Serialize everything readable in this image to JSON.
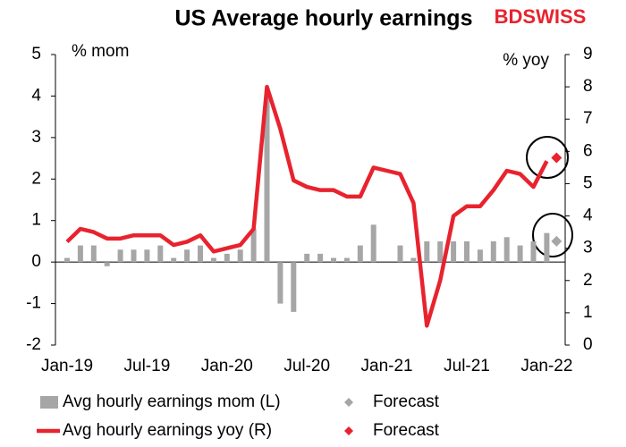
{
  "chart_data": {
    "type": "combo",
    "title": "US Average hourly earnings",
    "brand": "BDSWISS",
    "y_label": "% mom",
    "y2_label": "% yoy",
    "categories": [
      "Jan-19",
      null,
      null,
      null,
      null,
      null,
      "Jul-19",
      null,
      null,
      null,
      null,
      null,
      "Jan-20",
      null,
      null,
      null,
      null,
      null,
      "Jul-20",
      null,
      null,
      null,
      null,
      null,
      "Jan-21",
      null,
      null,
      null,
      null,
      null,
      "Jul-21",
      null,
      null,
      null,
      null,
      null,
      "Jan-22",
      null
    ],
    "ylim": [
      -2,
      5
    ],
    "yticks": [
      -2,
      -1,
      0,
      1,
      2,
      3,
      4,
      5
    ],
    "y2lim": [
      0,
      9
    ],
    "y2ticks": [
      0,
      1,
      2,
      3,
      4,
      5,
      6,
      7,
      8,
      9
    ],
    "legend": "bottom",
    "series": [
      {
        "name": "Avg hourly earnings mom (L)",
        "type": "bar",
        "color": "#a6a6a6",
        "values": [
          0.1,
          0.4,
          0.4,
          -0.1,
          0.3,
          0.3,
          0.3,
          0.4,
          0.1,
          0.3,
          0.4,
          0.1,
          0.2,
          0.3,
          0.8,
          4.0,
          -1.0,
          -1.2,
          0.2,
          0.2,
          0.1,
          0.1,
          0.4,
          0.9,
          0.0,
          0.4,
          0.1,
          0.5,
          0.5,
          0.5,
          0.5,
          0.3,
          0.5,
          0.6,
          0.4,
          0.5,
          0.7,
          null
        ]
      },
      {
        "name": "Avg hourly earnings yoy (R)",
        "type": "line",
        "axis": "y2",
        "color": "#e8232e",
        "values": [
          3.2,
          3.6,
          3.5,
          3.3,
          3.3,
          3.4,
          3.4,
          3.4,
          3.1,
          3.2,
          3.4,
          2.9,
          3.0,
          3.1,
          3.6,
          8.0,
          6.7,
          5.1,
          4.9,
          4.8,
          4.8,
          4.6,
          4.6,
          5.5,
          5.4,
          5.3,
          4.4,
          0.6,
          2.0,
          4.0,
          4.3,
          4.3,
          4.8,
          5.4,
          5.3,
          4.9,
          5.7,
          null
        ]
      },
      {
        "name": "Forecast",
        "type": "scatter",
        "color": "#a6a6a6",
        "values": [
          null,
          null,
          null,
          null,
          null,
          null,
          null,
          null,
          null,
          null,
          null,
          null,
          null,
          null,
          null,
          null,
          null,
          null,
          null,
          null,
          null,
          null,
          null,
          null,
          null,
          null,
          null,
          null,
          null,
          null,
          null,
          null,
          null,
          null,
          null,
          null,
          null,
          0.5
        ]
      },
      {
        "name": "Forecast",
        "type": "scatter",
        "axis": "y2",
        "color": "#e8232e",
        "values": [
          null,
          null,
          null,
          null,
          null,
          null,
          null,
          null,
          null,
          null,
          null,
          null,
          null,
          null,
          null,
          null,
          null,
          null,
          null,
          null,
          null,
          null,
          null,
          null,
          null,
          null,
          null,
          null,
          null,
          null,
          null,
          null,
          null,
          null,
          null,
          null,
          null,
          5.8
        ]
      }
    ]
  }
}
